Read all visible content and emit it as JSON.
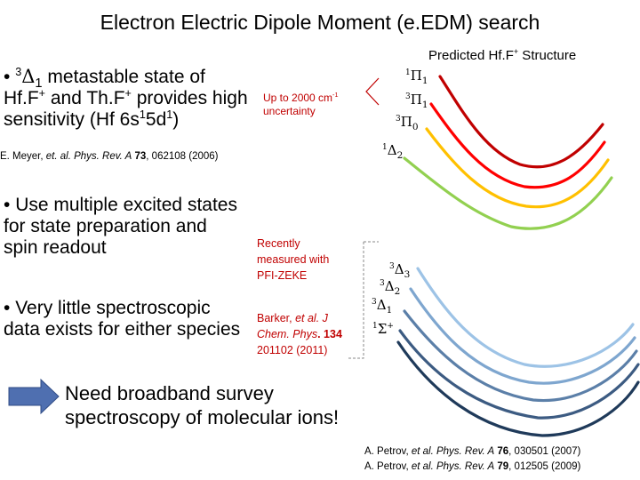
{
  "title": "Electron Electric Dipole Moment (e.EDM) search",
  "bullet1": {
    "bullet": "•",
    "pre": "3",
    "sym": "Δ",
    "sub": "1",
    "line1": "metastable  state of",
    "line2_a": "Hf.F",
    "line2_sup": "+",
    "line2_b": " and Th.F",
    "line2_sup2": "+",
    "line2_c": " provides high",
    "line3_a": "sensitivity (Hf 6s",
    "line3_s1": "1",
    "line3_b": "5d",
    "line3_s2": "1",
    "line3_c": ")"
  },
  "red_note": {
    "line1": "Up to 2000 cm",
    "sup": "-1",
    "line2": "uncertainty"
  },
  "ref_meyer": {
    "a": "E. Meyer, ",
    "b": "et. al. Phys. Rev. A",
    "c": " 73",
    "d": ", 062108 (2006)"
  },
  "structure_title": {
    "a": "Predicted Hf.F",
    "sup": "+",
    "b": " Structure"
  },
  "upper_labels": [
    {
      "pre": "1",
      "sym": "Π",
      "sub": "1"
    },
    {
      "pre": "3",
      "sym": "Π",
      "sub": "1"
    },
    {
      "pre": "3",
      "sym": "Π",
      "sub": "0"
    },
    {
      "pre": "1",
      "sym": "Δ",
      "sub": "2"
    }
  ],
  "bullet2": {
    "bullet": "•",
    "line1": "Use multiple excited states",
    "line2": "for state preparation and",
    "line3": "spin readout"
  },
  "recent_note": {
    "line1": "Recently",
    "line2": "measured with",
    "line3": "PFI-ZEKE"
  },
  "bullet3": {
    "bullet": "•",
    "line1": "Very little spectroscopic",
    "line2": "data exists for either species"
  },
  "barker_ref": {
    "line1_a": "Barker, ",
    "line1_b": "et   al. J",
    "line2_a": "Chem. Phys",
    "line2_b": ". 134",
    "line3": "201102 (2011)"
  },
  "lower_labels": [
    {
      "pre": "3",
      "sym": "Δ",
      "sub": "3"
    },
    {
      "pre": "3",
      "sym": "Δ",
      "sub": "2"
    },
    {
      "pre": "3",
      "sym": "Δ",
      "sub": "1"
    },
    {
      "pre": "1",
      "sym": "Σ",
      "sub": "+"
    }
  ],
  "need": {
    "line1": "Need broadband survey",
    "line2": "spectroscopy of molecular ions!"
  },
  "petrov_refs": [
    {
      "a": "A. Petrov, ",
      "b": "et al. Phys. Rev. A",
      "c": " 76",
      "d": ", 030501 (2007)"
    },
    {
      "a": "A. Petrov, ",
      "b": "et al. Phys. Rev. A",
      "c": " 79",
      "d": ", 012505 (2009)"
    }
  ],
  "colors": {
    "upper_curves": [
      "#c00000",
      "#ff0000",
      "#ffc000",
      "#92d050"
    ],
    "lower_curves": [
      "#9dc3e6",
      "#7ea6cf",
      "#5b7fa8",
      "#3c5b82",
      "#1f3a5a"
    ],
    "arrow": "#4f6fb0",
    "note_red": "#c00000"
  },
  "icons": [
    "right-arrow-icon"
  ]
}
